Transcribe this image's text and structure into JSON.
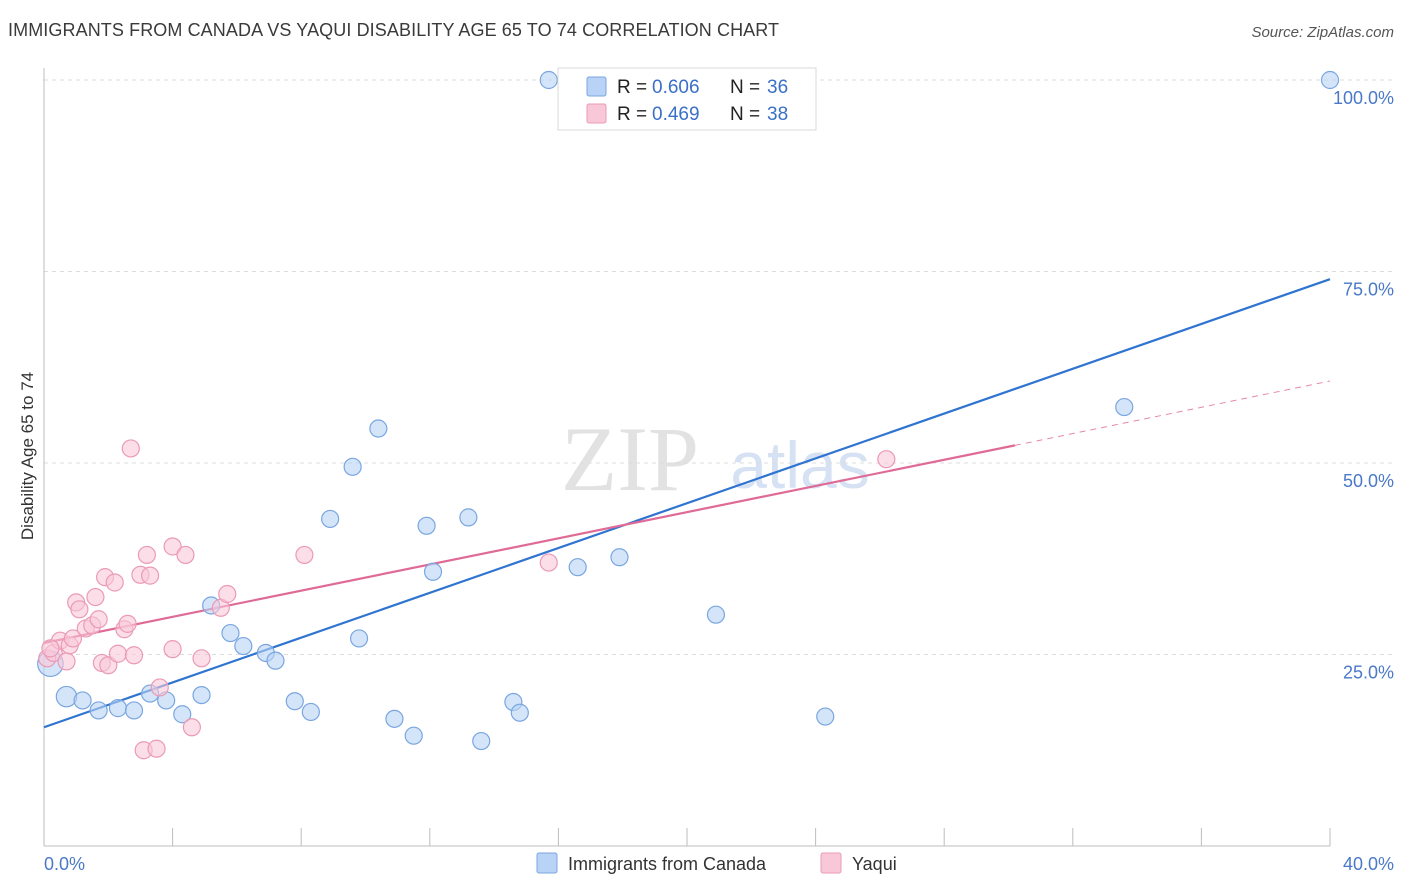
{
  "title": "IMMIGRANTS FROM CANADA VS YAQUI DISABILITY AGE 65 TO 74 CORRELATION CHART",
  "source": "Source: ZipAtlas.com",
  "watermark": {
    "zip": "ZIP",
    "atlas": "atlas"
  },
  "colors": {
    "blue_fill": "#b8d3f5",
    "blue_stroke": "#7aa6e0",
    "blue_line": "#2f74d0",
    "pink_fill": "#f8c8d8",
    "pink_stroke": "#eb9ab6",
    "pink_line": "#e06a96",
    "tick_text": "#4a79c8",
    "grid": "#dcdcdc"
  },
  "legend": {
    "rows": [
      {
        "r_label": "R = ",
        "r_value": "0.606",
        "n_label": "N = ",
        "n_value": "36"
      },
      {
        "r_label": "R = ",
        "r_value": "0.469",
        "n_label": "N = ",
        "n_value": "38"
      }
    ]
  },
  "chart_data": {
    "type": "scatter",
    "title": "IMMIGRANTS FROM CANADA VS YAQUI DISABILITY AGE 65 TO 74 CORRELATION CHART",
    "xlabel": "",
    "ylabel": "Disability Age 65 to 74",
    "xlim": [
      0,
      40
    ],
    "ylim": [
      0,
      103
    ],
    "x_tick_labels": [
      "0.0%",
      "40.0%"
    ],
    "y_tick_labels": [
      {
        "value": 25,
        "label": "25.0%"
      },
      {
        "value": 50,
        "label": "50.0%"
      },
      {
        "value": 75,
        "label": "75.0%"
      },
      {
        "value": 100,
        "label": "100.0%"
      }
    ],
    "grid": true,
    "legend_position": "top-center",
    "series": [
      {
        "name": "Immigrants from Canada",
        "color": "#7aa6e0",
        "trend": {
          "x": [
            0,
            40
          ],
          "y": [
            15.5,
            74
          ]
        },
        "points": [
          {
            "x": 0.2,
            "y": 23.8,
            "s": 1.5
          },
          {
            "x": 0.7,
            "y": 19.5,
            "s": 1.2
          },
          {
            "x": 1.2,
            "y": 19.0,
            "s": 1
          },
          {
            "x": 1.7,
            "y": 17.7,
            "s": 1
          },
          {
            "x": 2.3,
            "y": 18.0,
            "s": 1
          },
          {
            "x": 2.8,
            "y": 17.7,
            "s": 1
          },
          {
            "x": 3.3,
            "y": 19.9,
            "s": 1
          },
          {
            "x": 3.8,
            "y": 19.0,
            "s": 1
          },
          {
            "x": 4.3,
            "y": 17.2,
            "s": 1
          },
          {
            "x": 4.9,
            "y": 19.7,
            "s": 1
          },
          {
            "x": 5.2,
            "y": 31.4,
            "s": 1
          },
          {
            "x": 5.8,
            "y": 27.8,
            "s": 1
          },
          {
            "x": 6.2,
            "y": 26.1,
            "s": 1
          },
          {
            "x": 6.9,
            "y": 25.2,
            "s": 1
          },
          {
            "x": 7.2,
            "y": 24.2,
            "s": 1
          },
          {
            "x": 7.8,
            "y": 18.9,
            "s": 1
          },
          {
            "x": 8.3,
            "y": 17.5,
            "s": 1
          },
          {
            "x": 8.9,
            "y": 42.7,
            "s": 1
          },
          {
            "x": 9.6,
            "y": 49.5,
            "s": 1
          },
          {
            "x": 9.8,
            "y": 27.1,
            "s": 1
          },
          {
            "x": 10.4,
            "y": 54.5,
            "s": 1
          },
          {
            "x": 10.9,
            "y": 16.6,
            "s": 1
          },
          {
            "x": 11.5,
            "y": 14.4,
            "s": 1
          },
          {
            "x": 11.9,
            "y": 41.8,
            "s": 1
          },
          {
            "x": 12.1,
            "y": 35.8,
            "s": 1
          },
          {
            "x": 13.2,
            "y": 42.9,
            "s": 1
          },
          {
            "x": 13.6,
            "y": 13.7,
            "s": 1
          },
          {
            "x": 14.6,
            "y": 18.8,
            "s": 1
          },
          {
            "x": 14.8,
            "y": 17.4,
            "s": 1
          },
          {
            "x": 15.7,
            "y": 100.0,
            "s": 1
          },
          {
            "x": 16.6,
            "y": 36.4,
            "s": 1
          },
          {
            "x": 17.9,
            "y": 37.7,
            "s": 1
          },
          {
            "x": 20.9,
            "y": 30.2,
            "s": 1
          },
          {
            "x": 24.3,
            "y": 16.9,
            "s": 1
          },
          {
            "x": 33.6,
            "y": 57.3,
            "s": 1
          },
          {
            "x": 40.0,
            "y": 100.0,
            "s": 1
          }
        ]
      },
      {
        "name": "Yaqui",
        "color": "#eb9ab6",
        "trend": {
          "x": [
            0,
            30.2
          ],
          "y": [
            26.5,
            52.3
          ]
        },
        "trend_dashed": {
          "x": [
            30.2,
            40
          ],
          "y": [
            52.3,
            60.7
          ]
        },
        "points": [
          {
            "x": 0.1,
            "y": 24.5,
            "s": 1
          },
          {
            "x": 0.3,
            "y": 25.2,
            "s": 1
          },
          {
            "x": 0.5,
            "y": 26.8,
            "s": 1
          },
          {
            "x": 0.7,
            "y": 24.1,
            "s": 1
          },
          {
            "x": 0.8,
            "y": 26.2,
            "s": 1
          },
          {
            "x": 0.9,
            "y": 27.1,
            "s": 1
          },
          {
            "x": 1.0,
            "y": 31.8,
            "s": 1
          },
          {
            "x": 1.1,
            "y": 30.9,
            "s": 1
          },
          {
            "x": 1.3,
            "y": 28.4,
            "s": 1
          },
          {
            "x": 1.5,
            "y": 28.8,
            "s": 1
          },
          {
            "x": 1.6,
            "y": 32.5,
            "s": 1
          },
          {
            "x": 1.7,
            "y": 29.6,
            "s": 1
          },
          {
            "x": 1.8,
            "y": 23.9,
            "s": 1
          },
          {
            "x": 1.9,
            "y": 35.1,
            "s": 1
          },
          {
            "x": 2.0,
            "y": 23.6,
            "s": 1
          },
          {
            "x": 2.2,
            "y": 34.4,
            "s": 1
          },
          {
            "x": 2.3,
            "y": 25.1,
            "s": 1
          },
          {
            "x": 2.5,
            "y": 28.3,
            "s": 1
          },
          {
            "x": 2.6,
            "y": 29.0,
            "s": 1
          },
          {
            "x": 2.7,
            "y": 51.9,
            "s": 1
          },
          {
            "x": 2.8,
            "y": 24.9,
            "s": 1
          },
          {
            "x": 3.0,
            "y": 35.4,
            "s": 1
          },
          {
            "x": 3.1,
            "y": 12.5,
            "s": 1
          },
          {
            "x": 3.2,
            "y": 38.0,
            "s": 1
          },
          {
            "x": 3.3,
            "y": 35.3,
            "s": 1
          },
          {
            "x": 3.5,
            "y": 12.7,
            "s": 1
          },
          {
            "x": 3.6,
            "y": 20.7,
            "s": 1
          },
          {
            "x": 4.0,
            "y": 25.7,
            "s": 1
          },
          {
            "x": 4.0,
            "y": 39.1,
            "s": 1
          },
          {
            "x": 4.4,
            "y": 38.0,
            "s": 1
          },
          {
            "x": 4.6,
            "y": 15.5,
            "s": 1
          },
          {
            "x": 4.9,
            "y": 24.5,
            "s": 1
          },
          {
            "x": 5.5,
            "y": 31.1,
            "s": 1
          },
          {
            "x": 5.7,
            "y": 32.9,
            "s": 1
          },
          {
            "x": 8.1,
            "y": 38.0,
            "s": 1
          },
          {
            "x": 15.7,
            "y": 37.0,
            "s": 1
          },
          {
            "x": 26.2,
            "y": 50.5,
            "s": 1
          },
          {
            "x": 0.2,
            "y": 25.8,
            "s": 1
          }
        ]
      }
    ]
  }
}
